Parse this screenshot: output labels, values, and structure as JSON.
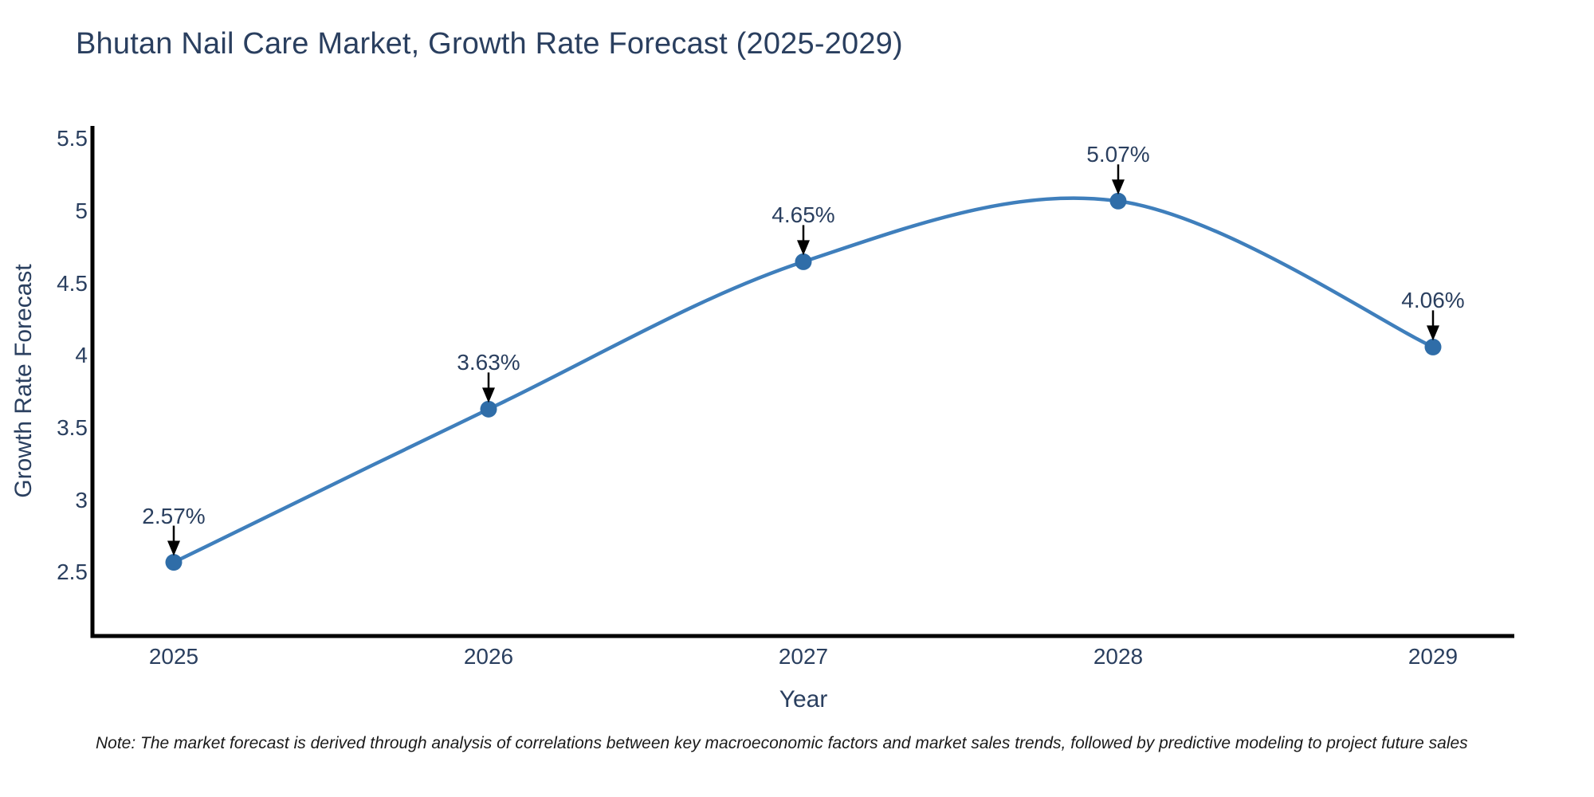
{
  "title": "Bhutan Nail Care Market, Growth Rate Forecast (2025-2029)",
  "note": "Note: The market forecast is derived through analysis of correlations between key macroeconomic factors and market sales trends, followed by predictive modeling to project future sales",
  "colors": {
    "line": "#3f7fbc",
    "marker": "#2f6da8",
    "axis_line": "#000000",
    "text": "#2a3f5f",
    "note_text": "#1a1a1a",
    "arrow": "#000000",
    "background": "#ffffff"
  },
  "chart_data": {
    "type": "line",
    "title": "Bhutan Nail Care Market, Growth Rate Forecast (2025-2029)",
    "x": [
      2025,
      2026,
      2027,
      2028,
      2029
    ],
    "values": [
      2.57,
      3.63,
      4.65,
      5.07,
      4.06
    ],
    "point_labels": [
      "2.57%",
      "3.63%",
      "4.65%",
      "5.07%",
      "4.06%"
    ],
    "xlabel": "Year",
    "ylabel": "Growth Rate Forecast",
    "ylim": [
      2.06,
      5.59
    ],
    "y_ticks": [
      2.5,
      3,
      3.5,
      4,
      4.5,
      5,
      5.5
    ],
    "y_tick_labels": [
      "2.5",
      "3",
      "3.5",
      "4",
      "4.5",
      "5",
      "5.5"
    ],
    "x_tick_labels": [
      "2025",
      "2026",
      "2027",
      "2028",
      "2029"
    ],
    "line_shape": "spline",
    "grid": false,
    "legend": "none",
    "marker": "circle"
  }
}
